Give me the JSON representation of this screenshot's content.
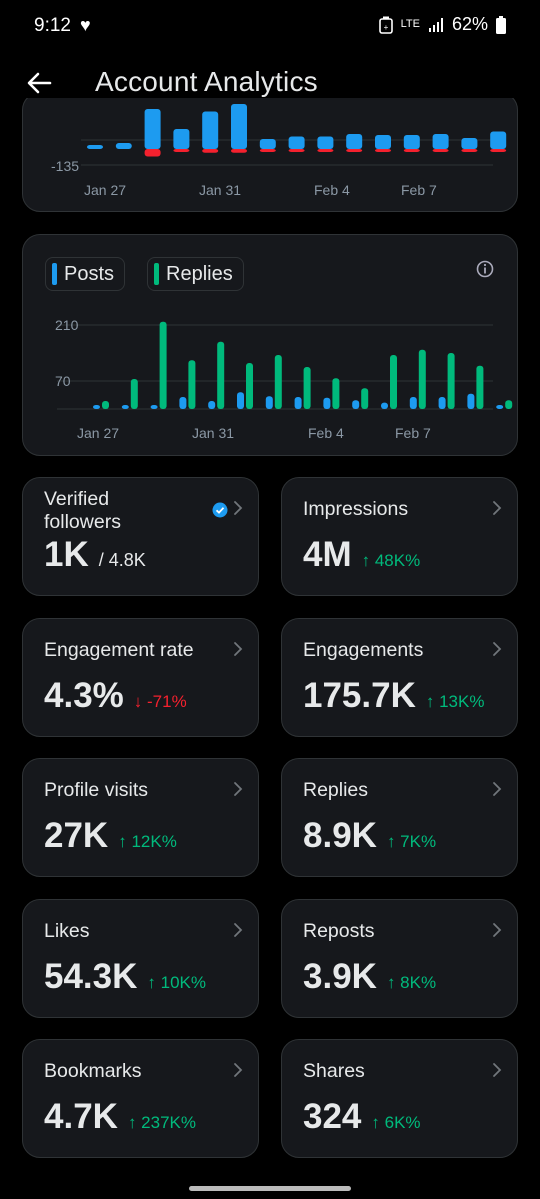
{
  "status": {
    "time": "9:12",
    "battery": "62%",
    "network": "LTE"
  },
  "header": {
    "title": "Account Analytics"
  },
  "chart_top": {
    "ytick": "-135",
    "xticks": [
      "Jan 27",
      "Jan 31",
      "Feb 4",
      "Feb 7"
    ]
  },
  "chart_data": [
    {
      "type": "bar",
      "categories": [
        "Jan 26",
        "Jan 27",
        "Jan 28",
        "Jan 29",
        "Jan 30",
        "Jan 31",
        "Feb 1",
        "Feb 2",
        "Feb 3",
        "Feb 4",
        "Feb 5",
        "Feb 6",
        "Feb 7",
        "Feb 8",
        "Feb 9"
      ],
      "x_ticks": [
        "Jan 27",
        "Jan 31",
        "Feb 4",
        "Feb 7"
      ],
      "y_ticks": [
        -135
      ],
      "series": [
        {
          "values": [
            5,
            12,
            80,
            40,
            75,
            90,
            20,
            25,
            25,
            30,
            28,
            28,
            30,
            22,
            35
          ],
          "color": "#1d9bf0"
        },
        {
          "values": [
            0,
            0,
            -60,
            -20,
            -30,
            -30,
            -15,
            -12,
            -10,
            -10,
            -10,
            -10,
            -8,
            -5,
            -5
          ],
          "color": "#f4212e"
        }
      ]
    },
    {
      "type": "bar",
      "categories": [
        "Jan 26",
        "Jan 27",
        "Jan 28",
        "Jan 29",
        "Jan 30",
        "Jan 31",
        "Feb 1",
        "Feb 2",
        "Feb 3",
        "Feb 4",
        "Feb 5",
        "Feb 6",
        "Feb 7",
        "Feb 8",
        "Feb 9"
      ],
      "x_ticks": [
        "Jan 27",
        "Jan 31",
        "Feb 4",
        "Feb 7"
      ],
      "y_ticks": [
        70,
        210
      ],
      "legend": [
        "Posts",
        "Replies"
      ],
      "series": [
        {
          "name": "Posts",
          "color": "#1d9bf0",
          "values": [
            8,
            8,
            8,
            30,
            20,
            42,
            32,
            30,
            28,
            22,
            16,
            30,
            30,
            38,
            4
          ]
        },
        {
          "name": "Replies",
          "color": "#00ba7c",
          "values": [
            20,
            75,
            218,
            122,
            168,
            115,
            135,
            105,
            77,
            52,
            135,
            148,
            140,
            108,
            22
          ]
        }
      ]
    }
  ],
  "legend": {
    "posts": "Posts",
    "replies": "Replies"
  },
  "chart_bottom": {
    "yticks": [
      "210",
      "70"
    ],
    "xticks": [
      "Jan 27",
      "Jan 31",
      "Feb 4",
      "Feb 7"
    ]
  },
  "tiles": [
    {
      "label": "Verified followers",
      "value": "1K",
      "sub": "/ 4.8K"
    },
    {
      "label": "Impressions",
      "value": "4M",
      "delta": "↑ 48K%",
      "dir": "up"
    },
    {
      "label": "Engagement rate",
      "value": "4.3%",
      "delta": "↓ -71%",
      "dir": "down"
    },
    {
      "label": "Engagements",
      "value": "175.7K",
      "delta": "↑ 13K%",
      "dir": "up"
    },
    {
      "label": "Profile visits",
      "value": "27K",
      "delta": "↑ 12K%",
      "dir": "up"
    },
    {
      "label": "Replies",
      "value": "8.9K",
      "delta": "↑ 7K%",
      "dir": "up"
    },
    {
      "label": "Likes",
      "value": "54.3K",
      "delta": "↑ 10K%",
      "dir": "up"
    },
    {
      "label": "Reposts",
      "value": "3.9K",
      "delta": "↑ 8K%",
      "dir": "up"
    },
    {
      "label": "Bookmarks",
      "value": "4.7K",
      "delta": "↑ 237K%",
      "dir": "up"
    },
    {
      "label": "Shares",
      "value": "324",
      "delta": "↑ 6K%",
      "dir": "up"
    }
  ]
}
